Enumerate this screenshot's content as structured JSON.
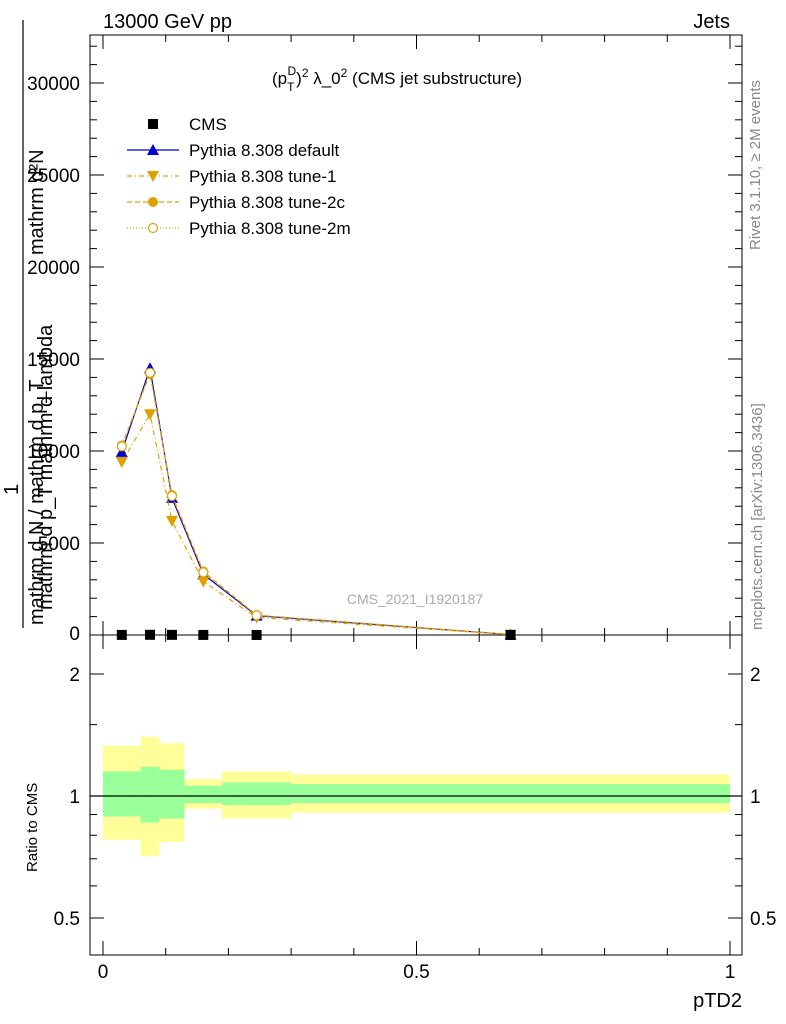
{
  "header": {
    "energy_label": "13000 GeV pp",
    "category_label": "Jets"
  },
  "side": {
    "rivet_label": "Rivet 3.1.10, ≥ 2M events",
    "source_label": "mcplots.cern.ch [arXiv:1306.3436]"
  },
  "watermark": "CMS_2021_I1920187",
  "main_ylabel_top": "mathrm d²N",
  "main_ylabel_mid": "mathrm d p_T mathrm d lambda",
  "main_ylabel_one": "1",
  "main_ylabel_bottom": "mathrm d N / mathrm d p_T",
  "ratio_ylabel": "Ratio to CMS",
  "xlabel": "pTD2",
  "colors": {
    "data": "#000000",
    "default": "#0000cc",
    "tune": "#e0a000",
    "band_inner": "#99ff99",
    "band_outer": "#ffff99"
  },
  "chart_data": [
    {
      "type": "line",
      "title": "(p_T^D)^2 λ_0^2 (CMS jet substructure)",
      "xlim": [
        0,
        1
      ],
      "ylim": [
        0,
        32500
      ],
      "x_ticks": [
        "0",
        "0.5",
        "1"
      ],
      "y_ticks": [
        {
          "v": 5000,
          "label": "5000"
        },
        {
          "v": 10000,
          "label": "10000"
        },
        {
          "v": 15000,
          "label": "15000"
        },
        {
          "v": 20000,
          "label": "20000"
        },
        {
          "v": 25000,
          "label": "25000"
        },
        {
          "v": 30000,
          "label": "30000"
        }
      ],
      "legend_position": "top-left",
      "x": [
        0.03,
        0.075,
        0.11,
        0.16,
        0.245,
        0.65
      ],
      "series": [
        {
          "name": "CMS",
          "key": "data",
          "marker": "square",
          "values": [
            5,
            10,
            8,
            4,
            2,
            0.5
          ]
        },
        {
          "name": "Pythia 8.308 default",
          "key": "default",
          "marker": "triangle-up",
          "dash": "",
          "values": [
            9950,
            14500,
            7450,
            3300,
            1050,
            25
          ]
        },
        {
          "name": "Pythia 8.308 tune-1",
          "key": "tune1",
          "marker": "triangle-down",
          "dash": "5 3 1 3",
          "values": [
            9400,
            12000,
            6200,
            2900,
            950,
            20
          ]
        },
        {
          "name": "Pythia 8.308 tune-2c",
          "key": "tune2c",
          "marker": "circle-filled",
          "dash": "5 3",
          "values": [
            10300,
            14200,
            7600,
            3450,
            1080,
            25
          ]
        },
        {
          "name": "Pythia 8.308 tune-2m",
          "key": "tune2m",
          "marker": "circle-open",
          "dash": "1 2",
          "values": [
            10250,
            14250,
            7550,
            3400,
            1070,
            25
          ]
        }
      ]
    },
    {
      "type": "area",
      "ylabel": "Ratio to CMS",
      "xlabel": "pTD2",
      "ylim": [
        0.4,
        2.3
      ],
      "log_y": true,
      "x_ticks": [
        "0",
        "0.5",
        "1"
      ],
      "y_ticks": [
        {
          "v": 0.5,
          "label": "0.5"
        },
        {
          "v": 1,
          "label": "1"
        },
        {
          "v": 2,
          "label": "2"
        }
      ],
      "bins": [
        {
          "x0": 0.0,
          "x1": 0.06,
          "inner": [
            0.89,
            1.15
          ],
          "outer": [
            0.78,
            1.33
          ]
        },
        {
          "x0": 0.06,
          "x1": 0.09,
          "inner": [
            0.86,
            1.18
          ],
          "outer": [
            0.71,
            1.4
          ]
        },
        {
          "x0": 0.09,
          "x1": 0.13,
          "inner": [
            0.88,
            1.16
          ],
          "outer": [
            0.77,
            1.35
          ]
        },
        {
          "x0": 0.13,
          "x1": 0.19,
          "inner": [
            0.96,
            1.06
          ],
          "outer": [
            0.93,
            1.1
          ]
        },
        {
          "x0": 0.19,
          "x1": 0.3,
          "inner": [
            0.95,
            1.08
          ],
          "outer": [
            0.88,
            1.15
          ]
        },
        {
          "x0": 0.3,
          "x1": 1.0,
          "inner": [
            0.96,
            1.07
          ],
          "outer": [
            0.91,
            1.13
          ]
        }
      ]
    }
  ]
}
